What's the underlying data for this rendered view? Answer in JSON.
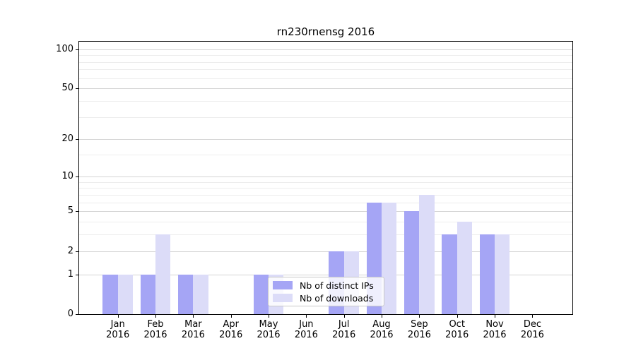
{
  "title": "rn230rnensg 2016",
  "x_axis": {
    "months": [
      "Jan",
      "Feb",
      "Mar",
      "Apr",
      "May",
      "Jun",
      "Jul",
      "Aug",
      "Sep",
      "Oct",
      "Nov",
      "Dec"
    ],
    "year": "2016"
  },
  "y_axis": {
    "tick_labels": [
      "100",
      "50",
      "20",
      "10",
      "5",
      "2",
      "1",
      "0"
    ]
  },
  "legend": {
    "items": [
      {
        "label": "Nb of distinct IPs",
        "color": "#a5a5f5"
      },
      {
        "label": "Nb of downloads",
        "color": "#dcdcf8"
      }
    ]
  },
  "chart_data": {
    "type": "bar",
    "title": "rn230rnensg 2016",
    "categories": [
      "Jan 2016",
      "Feb 2016",
      "Mar 2016",
      "Apr 2016",
      "May 2016",
      "Jun 2016",
      "Jul 2016",
      "Aug 2016",
      "Sep 2016",
      "Oct 2016",
      "Nov 2016",
      "Dec 2016"
    ],
    "series": [
      {
        "name": "Nb of distinct IPs",
        "color": "#a5a5f5",
        "values": [
          1,
          1,
          1,
          0,
          1,
          0,
          2,
          6,
          5,
          3,
          3,
          0
        ]
      },
      {
        "name": "Nb of downloads",
        "color": "#dcdcf8",
        "values": [
          1,
          3,
          1,
          0,
          1,
          0,
          2,
          6,
          7,
          4,
          3,
          0
        ]
      }
    ],
    "yscale": "log1p",
    "ylim": [
      0,
      112
    ],
    "y_major_ticks": [
      0,
      1,
      2,
      5,
      10,
      20,
      50,
      100
    ],
    "y_minor_gridlines": [
      3,
      4,
      6,
      7,
      8,
      9,
      15,
      30,
      40,
      60,
      70,
      80,
      90
    ],
    "grid": true,
    "legend_position": "lower center",
    "colors": {
      "major_grid": "#d4d4d4",
      "minor_grid": "#ededed",
      "spine": "#000000",
      "bar_distinct_ips": "#a5a5f5",
      "bar_downloads": "#dcdcf8"
    }
  }
}
